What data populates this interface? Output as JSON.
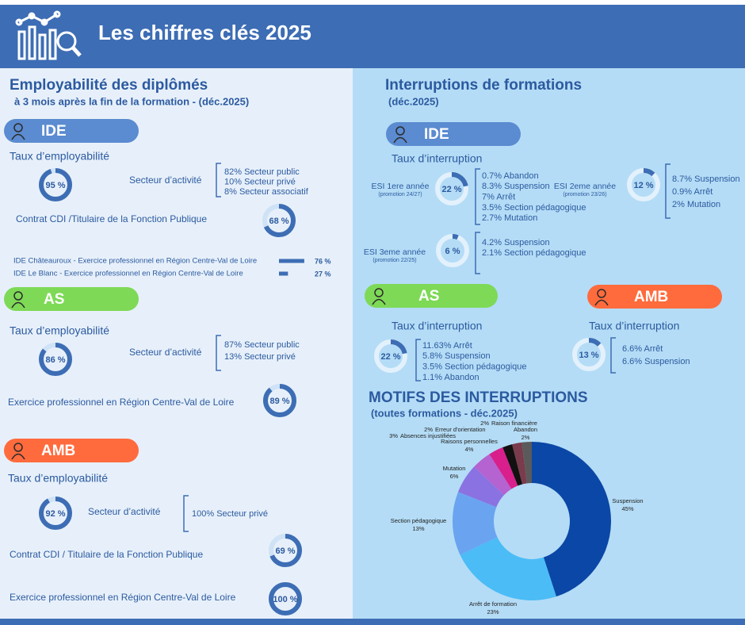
{
  "header": {
    "title": "Les chiffres clés 2025"
  },
  "employability": {
    "title": "Employabilité des diplômés",
    "subtitle": "à 3 mois après la fin de la formation - (déc.2025)",
    "ide": {
      "label": "IDE",
      "rate_label": "Taux d’employabilité",
      "rate": {
        "value": 95,
        "label": "95 %"
      },
      "sector_label": "Secteur d’activité",
      "sectors": [
        "82% Secteur public",
        "10% Secteur privé",
        "8% Secteur associatif"
      ],
      "cdi_label": "Contrat CDI /Titulaire de la Fonction Publique",
      "cdi": {
        "value": 68,
        "label": "68 %"
      },
      "regions": [
        {
          "label": "IDE Châteauroux - Exercice professionnel en Région Centre-Val de Loire",
          "value": 76,
          "value_label": "76 %"
        },
        {
          "label": "IDE Le Blanc  - Exercice professionnel en Région Centre-Val de Loire",
          "value": 27,
          "value_label": "27 %"
        }
      ]
    },
    "as": {
      "label": "AS",
      "rate_label": "Taux d’employabilité",
      "rate": {
        "value": 86,
        "label": "86 %"
      },
      "sector_label": "Secteur d’activité",
      "sectors": [
        "87% Secteur public",
        "13% Secteur privé"
      ],
      "region_label": "Exercice professionnel en Région Centre-Val de Loire",
      "region": {
        "value": 89,
        "label": "89 %"
      }
    },
    "amb": {
      "label": "AMB",
      "rate_label": "Taux d’employabilité",
      "rate": {
        "value": 92,
        "label": "92 %"
      },
      "sector_label": "Secteur d’activité",
      "sectors": [
        "100% Secteur privé"
      ],
      "cdi_label": "Contrat CDI / Titulaire de la Fonction Publique",
      "cdi": {
        "value": 69,
        "label": "69 %"
      },
      "region_label": "Exercice professionnel en Région Centre-Val de Loire",
      "region": {
        "value": 100,
        "label": "100 %"
      }
    }
  },
  "interruptions": {
    "title": "Interruptions de formations",
    "subtitle": "(déc.2025)",
    "ide": {
      "label": "IDE",
      "rate_label": "Taux d’interruption",
      "groups": [
        {
          "name": "ESI 1ere année",
          "promo": "(promotion 24/27)",
          "rate": {
            "value": 22,
            "label": "22 %"
          },
          "details": [
            "0.7% Abandon",
            "8.3% Suspension",
            "7% Arrêt",
            "3.5% Section pédagogique",
            "2.7% Mutation"
          ]
        },
        {
          "name": "ESI 2eme année",
          "promo": "(promotion 23/26)",
          "rate": {
            "value": 12,
            "label": "12 %"
          },
          "details": [
            "8.7% Suspension",
            "0.9% Arrêt",
            "2%  Mutation"
          ]
        },
        {
          "name": "ESI 3eme année",
          "promo": "(promotion 22/25)",
          "rate": {
            "value": 6,
            "label": "6 %"
          },
          "details": [
            "4.2% Suspension",
            "2.1% Section pédagogique"
          ]
        }
      ]
    },
    "as": {
      "label": "AS",
      "rate_label": "Taux d’interruption",
      "rate": {
        "value": 22,
        "label": "22 %"
      },
      "details": [
        "11.63% Arrêt",
        "5.8% Suspension",
        "3.5% Section pédagogique",
        "1.1% Abandon"
      ]
    },
    "amb": {
      "label": "AMB",
      "rate_label": "Taux d’interruption",
      "rate": {
        "value": 13,
        "label": "13 %"
      },
      "details": [
        "6.6% Arrêt",
        "6.6% Suspension"
      ]
    }
  },
  "motifs": {
    "type": "donut",
    "title": "MOTIFS DES INTERRUPTIONS",
    "subtitle": "(toutes formations - déc.2025)",
    "categories": [
      "Suspension",
      "Arrêt de formation",
      "Section pédagogique",
      "Mutation",
      "Raisons personnelles",
      "Absences injustifiées",
      "Erreur d'orientation",
      "Raison financière",
      "Abandon"
    ],
    "values": [
      45,
      23,
      13,
      6,
      4,
      3,
      2,
      2,
      2
    ],
    "value_labels": [
      "45%",
      "23%",
      "13%",
      "6%",
      "4%",
      "3%",
      "2%",
      "2%",
      "2%"
    ],
    "colors": [
      "#0b47a6",
      "#4bbcf6",
      "#6aa4f0",
      "#8a72e2",
      "#b463d0",
      "#d81f8c",
      "#111111",
      "#7a3b4d",
      "#5a5a5a"
    ]
  }
}
